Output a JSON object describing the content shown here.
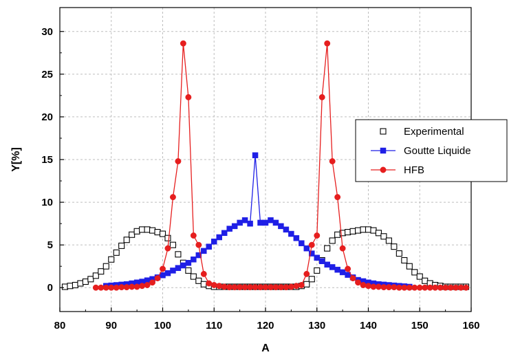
{
  "chart_data": {
    "type": "line",
    "xlabel": "A",
    "ylabel": "Y[%]",
    "xlim": [
      80,
      160
    ],
    "ylim": [
      -2.8,
      32.8
    ],
    "xticks": [
      80,
      90,
      100,
      110,
      120,
      130,
      140,
      150,
      160
    ],
    "yticks": [
      0,
      5,
      10,
      15,
      20,
      25,
      30
    ],
    "grid": true,
    "legend_position": "right",
    "series": [
      {
        "name": "Experimental",
        "marker": "open-square",
        "color": "#000000",
        "line": false,
        "x": [
          81,
          82,
          83,
          84,
          85,
          86,
          87,
          88,
          89,
          90,
          91,
          92,
          93,
          94,
          95,
          96,
          97,
          98,
          99,
          100,
          101,
          102,
          103,
          104,
          105,
          106,
          107,
          108,
          109,
          110,
          111,
          112,
          113,
          114,
          115,
          116,
          117,
          118,
          119,
          120,
          121,
          122,
          123,
          124,
          125,
          126,
          127,
          128,
          129,
          130,
          131,
          132,
          133,
          134,
          135,
          136,
          137,
          138,
          139,
          140,
          141,
          142,
          143,
          144,
          145,
          146,
          147,
          148,
          149,
          150,
          151,
          152,
          153,
          154,
          155,
          156,
          157,
          158,
          159
        ],
        "y": [
          0.1,
          0.2,
          0.3,
          0.5,
          0.7,
          1.0,
          1.4,
          1.9,
          2.5,
          3.3,
          4.1,
          4.9,
          5.6,
          6.2,
          6.6,
          6.8,
          6.8,
          6.7,
          6.5,
          6.3,
          5.8,
          5.0,
          3.9,
          2.9,
          2.0,
          1.3,
          0.8,
          0.4,
          0.2,
          0.1,
          0.1,
          0.1,
          0.1,
          0.1,
          0.1,
          0.1,
          0.1,
          0.1,
          0.1,
          0.1,
          0.1,
          0.1,
          0.1,
          0.1,
          0.1,
          0.1,
          0.2,
          0.4,
          1.0,
          2.0,
          3.2,
          4.6,
          5.5,
          6.2,
          6.4,
          6.5,
          6.6,
          6.7,
          6.8,
          6.8,
          6.7,
          6.4,
          6.0,
          5.5,
          4.8,
          4.0,
          3.2,
          2.5,
          1.8,
          1.3,
          0.8,
          0.5,
          0.3,
          0.2,
          0.1,
          0.1,
          0.1,
          0.1,
          0.1
        ]
      },
      {
        "name": "Goutte Liquide",
        "marker": "filled-square",
        "color": "#1f1fe6",
        "line": true,
        "x": [
          89,
          90,
          91,
          92,
          93,
          94,
          95,
          96,
          97,
          98,
          99,
          100,
          101,
          102,
          103,
          104,
          105,
          106,
          107,
          108,
          109,
          110,
          111,
          112,
          113,
          114,
          115,
          116,
          117,
          118,
          119,
          120,
          121,
          122,
          123,
          124,
          125,
          126,
          127,
          128,
          129,
          130,
          131,
          132,
          133,
          134,
          135,
          136,
          137,
          138,
          139,
          140,
          141,
          142,
          143,
          144,
          145,
          146,
          147,
          148
        ],
        "y": [
          0.2,
          0.25,
          0.3,
          0.35,
          0.4,
          0.5,
          0.6,
          0.7,
          0.85,
          1.0,
          1.2,
          1.45,
          1.7,
          2.0,
          2.3,
          2.6,
          2.9,
          3.3,
          3.8,
          4.3,
          4.8,
          5.4,
          5.9,
          6.4,
          6.9,
          7.2,
          7.6,
          7.9,
          7.5,
          15.5,
          7.6,
          7.6,
          7.9,
          7.6,
          7.2,
          6.8,
          6.3,
          5.8,
          5.2,
          4.6,
          4.0,
          3.5,
          3.1,
          2.7,
          2.4,
          2.1,
          1.8,
          1.5,
          1.2,
          0.9,
          0.75,
          0.6,
          0.5,
          0.4,
          0.35,
          0.3,
          0.25,
          0.2,
          0.15,
          0.1
        ]
      },
      {
        "name": "HFB",
        "marker": "filled-circle",
        "color": "#e61e1e",
        "line": true,
        "x": [
          87,
          88,
          89,
          90,
          91,
          92,
          93,
          94,
          95,
          96,
          97,
          98,
          99,
          100,
          101,
          102,
          103,
          104,
          105,
          106,
          107,
          108,
          109,
          110,
          111,
          112,
          113,
          114,
          115,
          116,
          117,
          118,
          119,
          120,
          121,
          122,
          123,
          124,
          125,
          126,
          127,
          128,
          129,
          130,
          131,
          132,
          133,
          134,
          135,
          136,
          137,
          138,
          139,
          140,
          141,
          142,
          143,
          144,
          145,
          146,
          147,
          148,
          149,
          150,
          151,
          152,
          153,
          154,
          155,
          156,
          157,
          158,
          159
        ],
        "y": [
          0.0,
          0.0,
          0.0,
          0.0,
          0.0,
          0.05,
          0.05,
          0.1,
          0.1,
          0.2,
          0.3,
          0.6,
          1.1,
          2.2,
          4.6,
          10.6,
          14.8,
          28.6,
          22.3,
          6.1,
          5.0,
          1.6,
          0.5,
          0.3,
          0.2,
          0.1,
          0.05,
          0.05,
          0.05,
          0.05,
          0.05,
          0.05,
          0.05,
          0.05,
          0.05,
          0.05,
          0.05,
          0.05,
          0.1,
          0.2,
          0.3,
          1.6,
          5.0,
          6.1,
          22.3,
          28.6,
          14.8,
          10.6,
          4.6,
          2.2,
          1.1,
          0.6,
          0.3,
          0.2,
          0.1,
          0.1,
          0.05,
          0.05,
          0.05,
          0.0,
          0.0,
          0.0,
          0.0,
          0.0,
          0.0,
          0.0,
          0.0,
          0.0,
          0.0,
          0.0,
          0.0,
          0.0,
          0.0
        ]
      }
    ]
  }
}
